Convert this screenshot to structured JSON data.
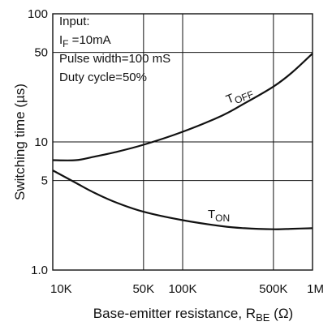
{
  "chart_data": {
    "type": "line",
    "x_scale": "log",
    "y_scale": "log",
    "xlim": [
      10000,
      1000000
    ],
    "ylim": [
      1,
      100
    ],
    "grid": true,
    "x_ticks": [
      {
        "value": 10000,
        "label": "10K"
      },
      {
        "value": 50000,
        "label": "50K"
      },
      {
        "value": 100000,
        "label": "100K"
      },
      {
        "value": 500000,
        "label": "500K"
      },
      {
        "value": 1000000,
        "label": "1M"
      }
    ],
    "y_ticks": [
      {
        "value": 1,
        "label": "1.0"
      },
      {
        "value": 5,
        "label": "5"
      },
      {
        "value": 10,
        "label": "10"
      },
      {
        "value": 50,
        "label": "50"
      },
      {
        "value": 100,
        "label": "100"
      }
    ],
    "xlabel": {
      "main": "Base-emitter resistance, R",
      "sub": "BE",
      "unit": " (Ω)"
    },
    "ylabel": "Switching time (µs)",
    "conditions": {
      "line1": "Input:",
      "line2_main": "I",
      "line2_sub": "F",
      "line2_rest": " =10mA",
      "line3": "Pulse width=100 mS",
      "line4": "Duty cycle=50%"
    },
    "series": [
      {
        "name_main": "T",
        "name_sub": "OFF",
        "points": [
          [
            10000,
            7.2
          ],
          [
            15000,
            7.2
          ],
          [
            20000,
            7.6
          ],
          [
            30000,
            8.3
          ],
          [
            50000,
            9.5
          ],
          [
            100000,
            12
          ],
          [
            200000,
            16
          ],
          [
            300000,
            20
          ],
          [
            500000,
            27
          ],
          [
            700000,
            35
          ],
          [
            1000000,
            49
          ]
        ]
      },
      {
        "name_main": "T",
        "name_sub": "ON",
        "points": [
          [
            10000,
            6.0
          ],
          [
            15000,
            4.8
          ],
          [
            20000,
            4.1
          ],
          [
            30000,
            3.4
          ],
          [
            50000,
            2.85
          ],
          [
            100000,
            2.45
          ],
          [
            200000,
            2.2
          ],
          [
            300000,
            2.12
          ],
          [
            500000,
            2.08
          ],
          [
            700000,
            2.1
          ],
          [
            1000000,
            2.12
          ]
        ]
      }
    ]
  }
}
